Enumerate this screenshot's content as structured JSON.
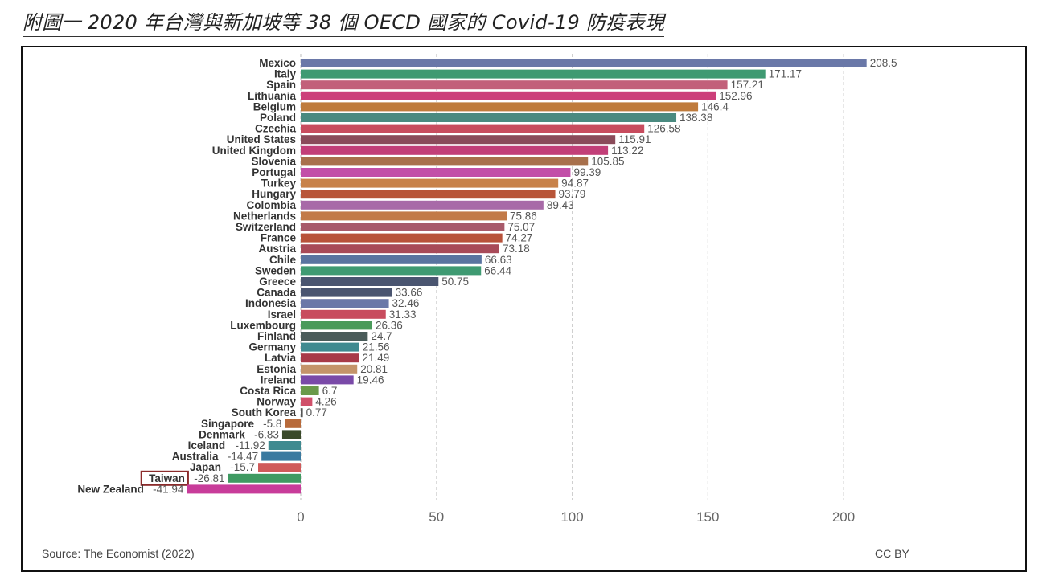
{
  "caption": "附圖一 2020 年台灣與新加坡等 38 個 OECD 國家的 Covid-19 防疫表現",
  "source": "Source: The Economist (2022)",
  "license": "CC BY",
  "highlight": "Taiwan",
  "chart_data": {
    "type": "bar",
    "orientation": "horizontal",
    "xlim": [
      -45,
      215
    ],
    "xticks": [
      0,
      50,
      100,
      150,
      200
    ],
    "grid": "vertical dashed",
    "categories": [
      "Mexico",
      "Italy",
      "Spain",
      "Lithuania",
      "Belgium",
      "Poland",
      "Czechia",
      "United States",
      "United Kingdom",
      "Slovenia",
      "Portugal",
      "Turkey",
      "Hungary",
      "Colombia",
      "Netherlands",
      "Switzerland",
      "France",
      "Austria",
      "Chile",
      "Sweden",
      "Greece",
      "Canada",
      "Indonesia",
      "Israel",
      "Luxembourg",
      "Finland",
      "Germany",
      "Latvia",
      "Estonia",
      "Ireland",
      "Costa Rica",
      "Norway",
      "South Korea",
      "Singapore",
      "Denmark",
      "Iceland",
      "Australia",
      "Japan",
      "Taiwan",
      "New Zealand"
    ],
    "values": [
      208.5,
      171.17,
      157.21,
      152.96,
      146.4,
      138.38,
      126.58,
      115.91,
      113.22,
      105.85,
      99.39,
      94.87,
      93.79,
      89.43,
      75.86,
      75.07,
      74.27,
      73.18,
      66.63,
      66.44,
      50.75,
      33.66,
      32.46,
      31.33,
      26.36,
      24.7,
      21.56,
      21.49,
      20.81,
      19.46,
      6.7,
      4.26,
      0.77,
      -5.8,
      -6.83,
      -11.92,
      -14.47,
      -15.7,
      -26.81,
      -41.94
    ],
    "value_labels": [
      "208.5",
      "171.17",
      "157.21",
      "152.96",
      "146.4",
      "138.38",
      "126.58",
      "115.91",
      "113.22",
      "105.85",
      "99.39",
      "94.87",
      "93.79",
      "89.43",
      "75.86",
      "75.07",
      "74.27",
      "73.18",
      "66.63",
      "66.44",
      "50.75",
      "33.66",
      "32.46",
      "31.33",
      "26.36",
      "24.7",
      "21.56",
      "21.49",
      "20.81",
      "19.46",
      "6.7",
      "4.26",
      "0.77",
      "-5.8",
      "-6.83",
      "-11.92",
      "-14.47",
      "-15.7",
      "-26.81",
      "-41.94"
    ],
    "colors": [
      "#6a78a8",
      "#3f9a72",
      "#c2607a",
      "#cc3f7a",
      "#bf7b3c",
      "#4a8a80",
      "#c84c5e",
      "#8a4b5a",
      "#c23f78",
      "#a8704c",
      "#c24fa8",
      "#c8824a",
      "#b85538",
      "#a86aa8",
      "#c27a48",
      "#a85a6a",
      "#b8523a",
      "#a84a58",
      "#5a74a0",
      "#3f9a72",
      "#4a5570",
      "#4a5570",
      "#6a78a8",
      "#c84c5e",
      "#4a9a5a",
      "#4a5c5a",
      "#3f8a90",
      "#a83a48",
      "#c4946a",
      "#7a4aa8",
      "#6a9a4a",
      "#d0506a",
      "#555555",
      "#b86a3a",
      "#3a4a2a",
      "#3f8a90",
      "#3a7aa0",
      "#d05a5a",
      "#3f9a62",
      "#c83c9a"
    ]
  }
}
